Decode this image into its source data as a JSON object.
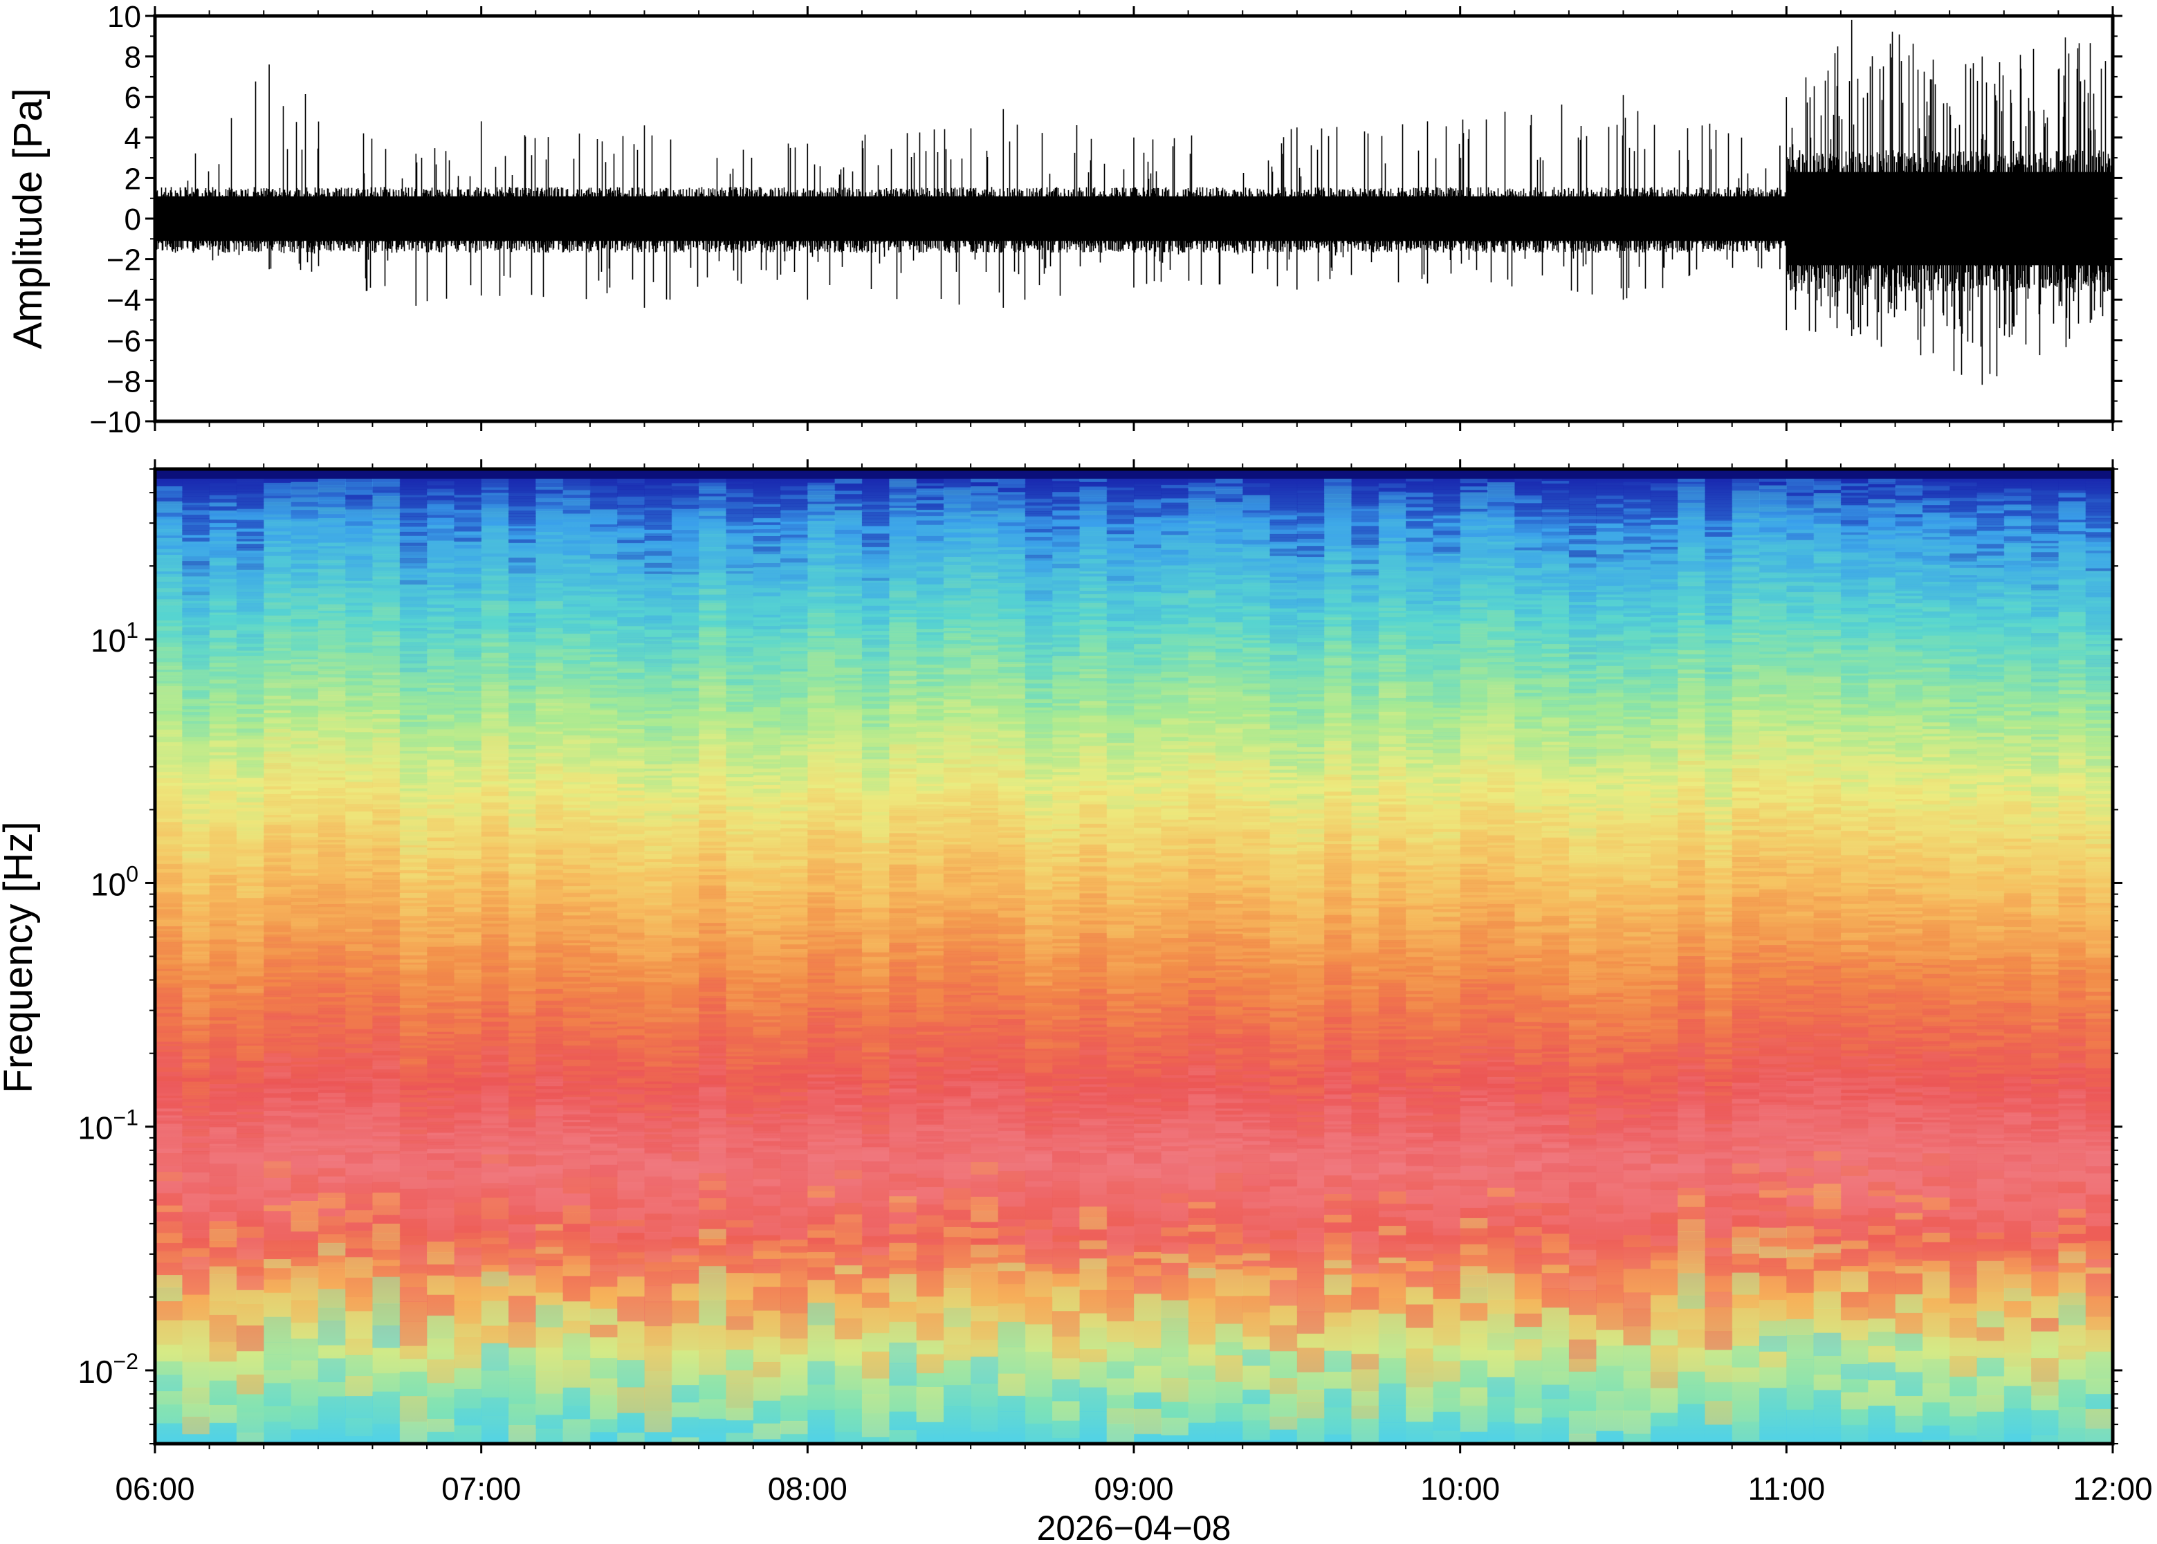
{
  "chart_data": [
    {
      "type": "line",
      "panel": "waveform",
      "ylabel": "Amplitude [Pa]",
      "ylim": [
        -10,
        10
      ],
      "yticks": [
        10,
        8,
        6,
        4,
        2,
        0,
        -2,
        -4,
        -6,
        -8,
        -10
      ],
      "ytick_labels": [
        "10",
        "8",
        "6",
        "4",
        "2",
        "0",
        "−2",
        "−4",
        "−6",
        "−8",
        "−10"
      ],
      "xlim_hours": [
        6,
        12
      ],
      "envelope": [
        {
          "t": 6.0,
          "lo": -1.8,
          "hi": 2.0
        },
        {
          "t": 6.35,
          "lo": -2.5,
          "hi": 7.6
        },
        {
          "t": 6.8,
          "lo": -4.3,
          "hi": 3.2
        },
        {
          "t": 7.0,
          "lo": -3.8,
          "hi": 4.8
        },
        {
          "t": 7.5,
          "lo": -4.4,
          "hi": 4.6
        },
        {
          "t": 8.0,
          "lo": -4.0,
          "hi": 3.7
        },
        {
          "t": 8.6,
          "lo": -4.4,
          "hi": 5.4
        },
        {
          "t": 9.0,
          "lo": -3.4,
          "hi": 4.0
        },
        {
          "t": 9.5,
          "lo": -3.5,
          "hi": 4.5
        },
        {
          "t": 9.9,
          "lo": -3.2,
          "hi": 4.8
        },
        {
          "t": 10.5,
          "lo": -4.0,
          "hi": 6.1
        },
        {
          "t": 10.98,
          "lo": -2.5,
          "hi": 3.6
        },
        {
          "t": 11.0,
          "lo": -5.5,
          "hi": 6.0
        },
        {
          "t": 11.2,
          "lo": -5.8,
          "hi": 9.8
        },
        {
          "t": 11.6,
          "lo": -8.2,
          "hi": 8.0
        },
        {
          "t": 12.0,
          "lo": -5.5,
          "hi": 9.6
        }
      ]
    },
    {
      "type": "heatmap",
      "panel": "spectrogram",
      "ylabel": "Frequency [Hz]",
      "yscale": "log",
      "ylim": [
        0.005,
        50
      ],
      "ytick_labels": [
        {
          "base": "10",
          "exp": "1",
          "value": 10
        },
        {
          "base": "10",
          "exp": "0",
          "value": 1
        },
        {
          "base": "10",
          "exp": "−1",
          "value": 0.1
        },
        {
          "base": "10",
          "exp": "−2",
          "value": 0.01
        }
      ],
      "colormap": "rainbow (blue low power → red/pink high power)",
      "color_bands": [
        {
          "freq": 45,
          "color": "#1a2ab0"
        },
        {
          "freq": 30,
          "color": "#3aa0ec"
        },
        {
          "freq": 12,
          "color": "#58d6d0"
        },
        {
          "freq": 5,
          "color": "#a8ea92"
        },
        {
          "freq": 2.5,
          "color": "#ecec80"
        },
        {
          "freq": 1.0,
          "color": "#f6c060"
        },
        {
          "freq": 0.4,
          "color": "#f28a48"
        },
        {
          "freq": 0.15,
          "color": "#ec5656"
        },
        {
          "freq": 0.07,
          "color": "#f07a80"
        },
        {
          "freq": 0.035,
          "color": "#ee5d56"
        },
        {
          "freq": 0.02,
          "color": "#f6b25a"
        },
        {
          "freq": 0.012,
          "color": "#d6ea86"
        },
        {
          "freq": 0.007,
          "color": "#7ee2b6"
        },
        {
          "freq": 0.005,
          "color": "#50d2e8"
        }
      ]
    }
  ],
  "x_axis": {
    "tick_labels": [
      "06:00",
      "07:00",
      "08:00",
      "09:00",
      "10:00",
      "11:00",
      "12:00"
    ],
    "xlabel": "2026−04−08"
  }
}
